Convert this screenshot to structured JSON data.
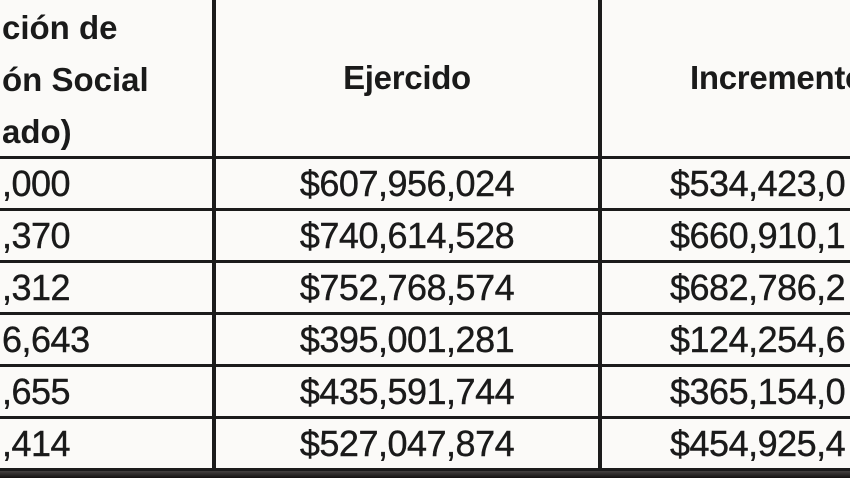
{
  "table": {
    "header": {
      "col1_lines": [
        "ción de",
        "ón Social",
        "ado)"
      ],
      "col2": "Ejercido",
      "col3": "Incremento"
    },
    "rows": [
      {
        "col1": ",000",
        "col2": "$607,956,024",
        "col3": "$534,423,0"
      },
      {
        "col1": ",370",
        "col2": "$740,614,528",
        "col3": "$660,910,1"
      },
      {
        "col1": ",312",
        "col2": "$752,768,574",
        "col3": "$682,786,2"
      },
      {
        "col1": "6,643",
        "col2": "$395,001,281",
        "col3": "$124,254,6"
      },
      {
        "col1": ",655",
        "col2": "$435,591,744",
        "col3": "$365,154,0"
      },
      {
        "col1": ",414",
        "col2": "$527,047,874",
        "col3": "$454,925,4"
      }
    ]
  },
  "colors": {
    "border": "#1b1b1b",
    "cell_background": "#fbfaf8",
    "text": "#1a1a1a",
    "bottom_bar_top": "#444140",
    "bottom_bar_bottom": "#141211"
  }
}
